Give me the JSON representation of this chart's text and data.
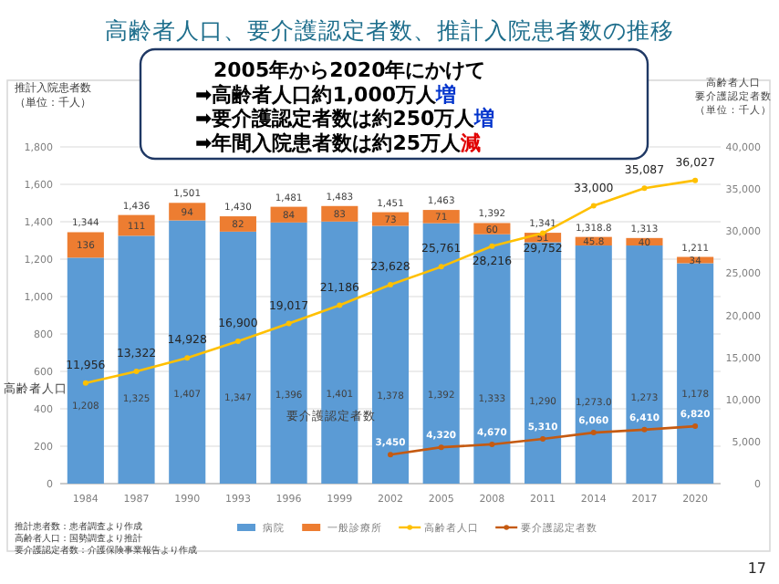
{
  "chart_data": {
    "type": "bar",
    "stacked": true,
    "title": "高齢者人口、要介護認定者数、推計入院患者数の推移",
    "ylabel": "推計入院患者数（単位：千人）",
    "y2label": "高齢者人口要介護認定者数（単位：千人）",
    "categories": [
      "1984",
      "1987",
      "1990",
      "1993",
      "1996",
      "1999",
      "2002",
      "2005",
      "2008",
      "2011",
      "2014",
      "2017",
      "2020"
    ],
    "series": [
      {
        "name": "病院",
        "color": "#5b9bd5",
        "values": [
          1208,
          1325,
          1407,
          1347,
          1396,
          1401,
          1378,
          1392,
          1333,
          1290,
          1273.0,
          1273,
          1178
        ],
        "value_labels": [
          "1,208",
          "1,325",
          "1,407",
          "1,347",
          "1,396",
          "1,401",
          "1,378",
          "1,392",
          "1,333",
          "1,290",
          "1,273.0",
          "1,273",
          "1,178"
        ]
      },
      {
        "name": "一般診療所",
        "color": "#ed7d31",
        "values": [
          136,
          111,
          94,
          82,
          84,
          83,
          73,
          71,
          60,
          51,
          45.8,
          40,
          34
        ],
        "value_labels": [
          "136",
          "111",
          "94",
          "82",
          "84",
          "83",
          "73",
          "71",
          "60",
          "51",
          "45.8",
          "40",
          "34"
        ]
      },
      {
        "name": "高齢者人口",
        "type": "line",
        "axis": "y2",
        "color": "#ffc000",
        "values": [
          11956,
          13322,
          14928,
          16900,
          19017,
          21186,
          23628,
          25761,
          28216,
          29752,
          33000,
          35087,
          36027
        ],
        "value_labels": [
          "11,956",
          "13,322",
          "14,928",
          "16,900",
          "19,017",
          "21,186",
          "23,628",
          "25,761",
          "28,216",
          "29,752",
          "33,000",
          "35,087",
          "36,027"
        ]
      },
      {
        "name": "要介護認定者数",
        "type": "line",
        "axis": "y2",
        "color": "#c55a11",
        "values": [
          null,
          null,
          null,
          null,
          null,
          null,
          3450,
          4320,
          4670,
          5310,
          6060,
          6410,
          6820
        ],
        "value_labels": [
          null,
          null,
          null,
          null,
          null,
          null,
          "3,450",
          "4,320",
          "4,670",
          "5,310",
          "6,060",
          "6,410",
          "6,820"
        ]
      }
    ],
    "totals": [
      "1,344",
      "1,436",
      "1,501",
      "1,430",
      "1,481",
      "1,483",
      "1,451",
      "1,463",
      "1,392",
      "1,341",
      "1,318.8",
      "1,313",
      "1,211"
    ],
    "ylim": [
      0,
      1800
    ],
    "yticks": [
      {
        "value": 0,
        "label": "0"
      },
      {
        "value": 200,
        "label": "200"
      },
      {
        "value": 400,
        "label": "400"
      },
      {
        "value": 600,
        "label": "600"
      },
      {
        "value": 800,
        "label": "800"
      },
      {
        "value": 1000,
        "label": "1,000"
      },
      {
        "value": 1200,
        "label": "1,200"
      },
      {
        "value": 1400,
        "label": "1,400"
      },
      {
        "value": 1600,
        "label": "1,600"
      },
      {
        "value": 1800,
        "label": "1,800"
      }
    ],
    "y2lim": [
      0,
      40000
    ],
    "y2ticks": [
      {
        "value": 0,
        "label": "0"
      },
      {
        "value": 5000,
        "label": "5,000"
      },
      {
        "value": 10000,
        "label": "10,000"
      },
      {
        "value": 15000,
        "label": "15,000"
      },
      {
        "value": 20000,
        "label": "20,000"
      },
      {
        "value": 25000,
        "label": "25,000"
      },
      {
        "value": 30000,
        "label": "30,000"
      },
      {
        "value": 35000,
        "label": "35,000"
      },
      {
        "value": 40000,
        "label": "40,000"
      }
    ],
    "grid": "y",
    "legend": "bottom",
    "marker": "circle",
    "annotations": [
      "2005年から2020年にかけて",
      "➡高齢者人口約1,000万人増",
      "➡要介護認定者数は約250万人増",
      "➡年間入院患者数は約25万人減",
      "推計患者数：患者調査より作成",
      "高齢者人口：国勢調査より推計",
      "要介護認定者数：介護保険事業報告より作成",
      "17"
    ]
  }
}
